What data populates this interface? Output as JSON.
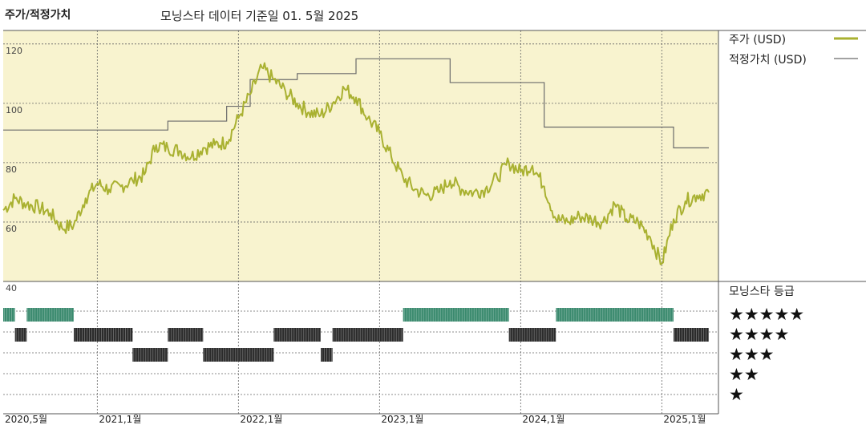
{
  "header": {
    "left_title": "주가/적정가치",
    "center_title": "모닝스타 데이터 기준일 01. 5월 2025"
  },
  "legend": {
    "price_label": "주가 (USD)",
    "fair_value_label": "적정가치 (USD)",
    "rating_title": "모닝스타 등급",
    "star_rows": [
      "★★★★★",
      "★★★★",
      "★★★",
      "★★",
      "★"
    ]
  },
  "colors": {
    "plot_bg": "#f8f3cf",
    "price_line": "#a9b131",
    "fair_value_line": "#6b6b6b",
    "rating_5": "#3a8a6e",
    "rating_other": "#2b2b2b"
  },
  "chart_data": {
    "type": "line",
    "title": "",
    "xlabel": "",
    "ylabel": "",
    "x_range": [
      "2020-05",
      "2025-05"
    ],
    "ylim": [
      40,
      124
    ],
    "y_ticks": [
      40,
      60,
      80,
      100,
      120
    ],
    "x_ticks": [
      "2020,5월",
      "2021,1월",
      "2022,1월",
      "2023,1월",
      "2024,1월",
      "2025,1월"
    ],
    "grid": true,
    "series": [
      {
        "name": "주가 (USD)",
        "points": [
          [
            "2020-05",
            64
          ],
          [
            "2020-06",
            68
          ],
          [
            "2020-07",
            66
          ],
          [
            "2020-08",
            65
          ],
          [
            "2020-09",
            63
          ],
          [
            "2020-10",
            58
          ],
          [
            "2020-11",
            59
          ],
          [
            "2020-12",
            68
          ],
          [
            "2021-01",
            73
          ],
          [
            "2021-02",
            71
          ],
          [
            "2021-03",
            72
          ],
          [
            "2021-04",
            74
          ],
          [
            "2021-05",
            76
          ],
          [
            "2021-06",
            86
          ],
          [
            "2021-07",
            85
          ],
          [
            "2021-08",
            84
          ],
          [
            "2021-09",
            82
          ],
          [
            "2021-10",
            85
          ],
          [
            "2021-11",
            86
          ],
          [
            "2021-12",
            87
          ],
          [
            "2022-01",
            95
          ],
          [
            "2022-02",
            103
          ],
          [
            "2022-03",
            112
          ],
          [
            "2022-04",
            108
          ],
          [
            "2022-05",
            104
          ],
          [
            "2022-06",
            100
          ],
          [
            "2022-07",
            97
          ],
          [
            "2022-08",
            96
          ],
          [
            "2022-09",
            100
          ],
          [
            "2022-10",
            105
          ],
          [
            "2022-11",
            102
          ],
          [
            "2022-12",
            95
          ],
          [
            "2023-01",
            90
          ],
          [
            "2023-02",
            82
          ],
          [
            "2023-03",
            75
          ],
          [
            "2023-04",
            71
          ],
          [
            "2023-05",
            69
          ],
          [
            "2023-06",
            70
          ],
          [
            "2023-07",
            74
          ],
          [
            "2023-08",
            71
          ],
          [
            "2023-09",
            70
          ],
          [
            "2023-10",
            71
          ],
          [
            "2023-11",
            75
          ],
          [
            "2023-12",
            80
          ],
          [
            "2024-01",
            77
          ],
          [
            "2024-02",
            79
          ],
          [
            "2024-03",
            72
          ],
          [
            "2024-04",
            61
          ],
          [
            "2024-05",
            60
          ],
          [
            "2024-06",
            62
          ],
          [
            "2024-07",
            61
          ],
          [
            "2024-08",
            60
          ],
          [
            "2024-09",
            66
          ],
          [
            "2024-10",
            61
          ],
          [
            "2024-11",
            60
          ],
          [
            "2024-12",
            55
          ],
          [
            "2025-01",
            46
          ],
          [
            "2025-02",
            61
          ],
          [
            "2025-03",
            67
          ],
          [
            "2025-04",
            69
          ],
          [
            "2025-05",
            70
          ]
        ]
      },
      {
        "name": "적정가치 (USD)",
        "steps": [
          [
            "2020-05",
            91
          ],
          [
            "2021-07",
            94
          ],
          [
            "2021-12",
            99
          ],
          [
            "2022-02",
            108
          ],
          [
            "2022-06",
            110
          ],
          [
            "2022-11",
            115
          ],
          [
            "2023-07",
            107
          ],
          [
            "2024-03",
            92
          ],
          [
            "2025-02",
            85
          ],
          [
            "2025-05",
            85
          ]
        ]
      }
    ],
    "ratings": {
      "legend": [
        "★★★★★",
        "★★★★",
        "★★★",
        "★★",
        "★"
      ],
      "periods": [
        [
          "2020-05",
          "2020-06",
          5
        ],
        [
          "2020-06",
          "2020-07",
          4
        ],
        [
          "2020-07",
          "2020-11",
          5
        ],
        [
          "2020-11",
          "2021-04",
          4
        ],
        [
          "2021-04",
          "2021-07",
          3
        ],
        [
          "2021-07",
          "2021-10",
          4
        ],
        [
          "2021-10",
          "2022-04",
          3
        ],
        [
          "2022-04",
          "2022-08",
          4
        ],
        [
          "2022-08",
          "2022-09",
          3
        ],
        [
          "2022-09",
          "2023-03",
          4
        ],
        [
          "2023-03",
          "2023-12",
          5
        ],
        [
          "2023-12",
          "2024-04",
          4
        ],
        [
          "2024-04",
          "2025-02",
          5
        ],
        [
          "2025-02",
          "2025-05",
          4
        ]
      ]
    }
  }
}
